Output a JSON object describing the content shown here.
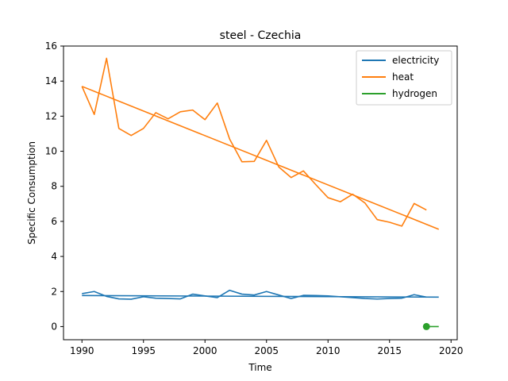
{
  "chart_data": {
    "type": "line",
    "title": "steel - Czechia",
    "xlabel": "Time",
    "ylabel": "Specific Consumption",
    "xlim": [
      1988.5,
      2020.5
    ],
    "ylim": [
      -0.75,
      16
    ],
    "xticks": [
      1990,
      1995,
      2000,
      2005,
      2010,
      2015,
      2020
    ],
    "yticks": [
      0,
      2,
      4,
      6,
      8,
      10,
      12,
      14,
      16
    ],
    "grid": false,
    "legend_position": "top-right",
    "series": [
      {
        "name": "electricity",
        "color": "#1f77b4",
        "x": [
          1990,
          1991,
          1992,
          1993,
          1994,
          1995,
          1996,
          1997,
          1998,
          1999,
          2000,
          2001,
          2002,
          2003,
          2004,
          2005,
          2006,
          2007,
          2008,
          2009,
          2010,
          2011,
          2012,
          2013,
          2014,
          2015,
          2016,
          2017,
          2018
        ],
        "y": [
          1.88,
          2.0,
          1.72,
          1.58,
          1.56,
          1.7,
          1.62,
          1.6,
          1.58,
          1.85,
          1.75,
          1.65,
          2.07,
          1.85,
          1.8,
          2.0,
          1.8,
          1.6,
          1.78,
          1.77,
          1.75,
          1.7,
          1.65,
          1.6,
          1.57,
          1.6,
          1.62,
          1.82,
          1.68
        ],
        "trend": {
          "x": [
            1990,
            2019
          ],
          "y": [
            1.77,
            1.68
          ]
        }
      },
      {
        "name": "heat",
        "color": "#ff7f0e",
        "x": [
          1990,
          1991,
          1992,
          1993,
          1994,
          1995,
          1996,
          1997,
          1998,
          1999,
          2000,
          2001,
          2002,
          2003,
          2004,
          2005,
          2006,
          2007,
          2008,
          2009,
          2010,
          2011,
          2012,
          2013,
          2014,
          2015,
          2016,
          2017,
          2018
        ],
        "y": [
          13.7,
          12.1,
          15.3,
          11.3,
          10.9,
          11.3,
          12.2,
          11.85,
          12.25,
          12.35,
          11.8,
          12.75,
          10.7,
          9.4,
          9.42,
          10.62,
          9.1,
          8.5,
          8.88,
          8.1,
          7.35,
          7.12,
          7.55,
          7.05,
          6.1,
          5.95,
          5.73,
          7.02,
          6.65
        ],
        "trend": {
          "x": [
            1990,
            2019
          ],
          "y": [
            13.7,
            5.55
          ]
        }
      },
      {
        "name": "hydrogen",
        "color": "#2ca02c",
        "x": [
          2018
        ],
        "y": [
          0.0
        ],
        "trend": {
          "x": [
            2018,
            2019
          ],
          "y": [
            0.0,
            0.0
          ]
        }
      }
    ]
  }
}
